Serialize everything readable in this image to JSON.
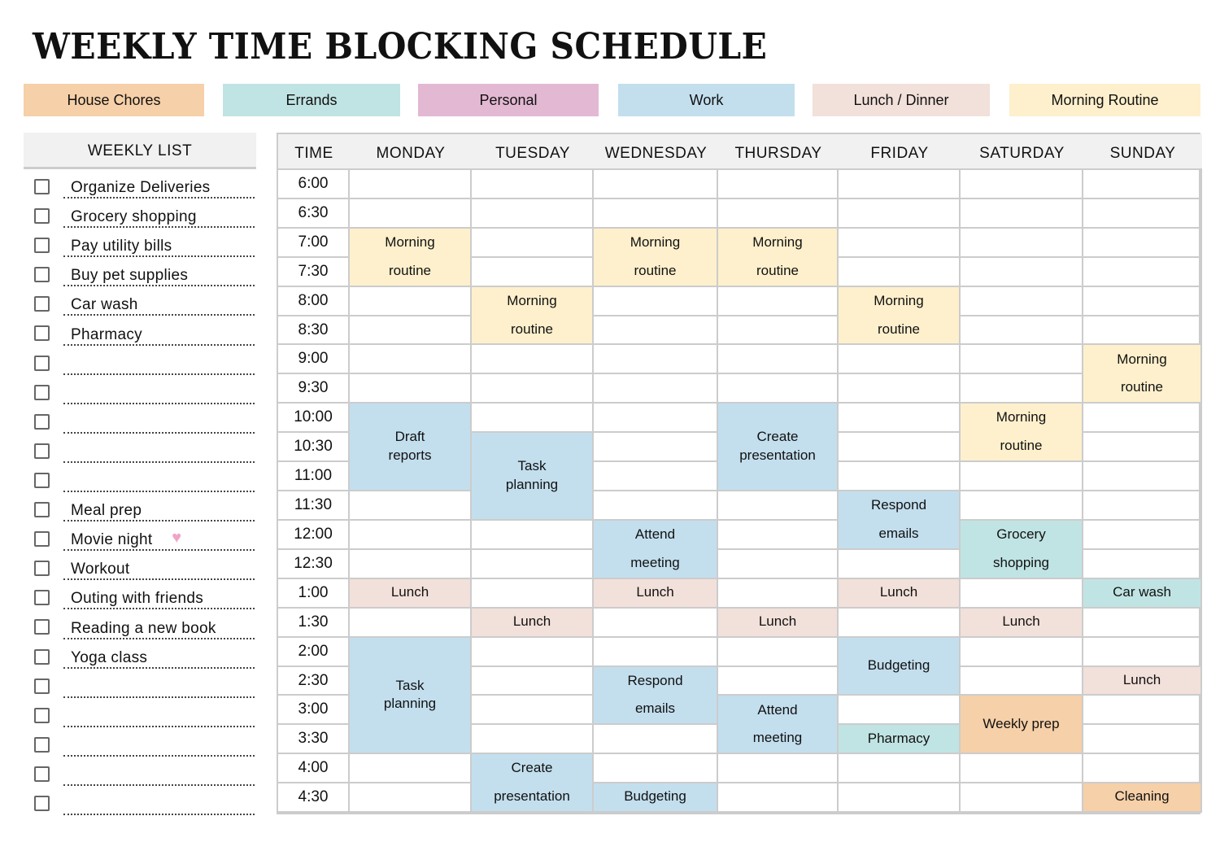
{
  "title": "WEEKLY TIME BLOCKING SCHEDULE",
  "categories": [
    {
      "key": "house",
      "label": "House Chores",
      "color": "#f6d0a8"
    },
    {
      "key": "errands",
      "label": "Errands",
      "color": "#c0e4e3"
    },
    {
      "key": "personal",
      "label": "Personal",
      "color": "#e3b8d3"
    },
    {
      "key": "work",
      "label": "Work",
      "color": "#c3dfee"
    },
    {
      "key": "lunch",
      "label": "Lunch / Dinner",
      "color": "#f2e0da"
    },
    {
      "key": "morning",
      "label": "Morning Routine",
      "color": "#fef0cc"
    }
  ],
  "weekly_list": {
    "title": "WEEKLY LIST",
    "items": [
      "Organize Deliveries",
      "Grocery shopping",
      "Pay utility bills",
      "Buy pet supplies",
      "Car wash",
      "Pharmacy",
      "",
      "",
      "",
      "",
      "",
      "Meal prep",
      "Movie night",
      "Workout",
      "Outing with friends",
      "Reading a new book",
      "Yoga class",
      "",
      "",
      "",
      "",
      ""
    ],
    "heart_icon_item": "Movie night"
  },
  "schedule": {
    "time_header": "TIME",
    "days": [
      "MONDAY",
      "TUESDAY",
      "WEDNESDAY",
      "THURSDAY",
      "FRIDAY",
      "SATURDAY",
      "SUNDAY"
    ],
    "times": [
      "6:00",
      "6:30",
      "7:00",
      "7:30",
      "8:00",
      "8:30",
      "9:00",
      "9:30",
      "10:00",
      "10:30",
      "11:00",
      "11:30",
      "12:00",
      "12:30",
      "1:00",
      "1:30",
      "2:00",
      "2:30",
      "3:00",
      "3:30"
    ],
    "times_tail": [
      "4:00",
      "4:30"
    ],
    "events": [
      {
        "day": "MONDAY",
        "start": "7:00",
        "end": "8:00",
        "label": "Morning\nroutine",
        "category": "morning"
      },
      {
        "day": "MONDAY",
        "start": "10:00",
        "end": "11:30",
        "label": "Draft\nreports",
        "category": "work"
      },
      {
        "day": "MONDAY",
        "start": "1:00",
        "end": "1:30",
        "label": "Lunch",
        "category": "lunch"
      },
      {
        "day": "MONDAY",
        "start": "2:00",
        "end": "4:00",
        "label": "Task\nplanning",
        "category": "work"
      },
      {
        "day": "TUESDAY",
        "start": "8:00",
        "end": "9:00",
        "label": "Morning\nroutine",
        "category": "morning"
      },
      {
        "day": "TUESDAY",
        "start": "10:30",
        "end": "12:00",
        "label": "Task\nplanning",
        "category": "work"
      },
      {
        "day": "TUESDAY",
        "start": "1:30",
        "end": "2:00",
        "label": "Lunch",
        "category": "lunch"
      },
      {
        "day": "TUESDAY",
        "start": "4:00",
        "end": "5:00",
        "label": "Create\npresentation",
        "category": "work"
      },
      {
        "day": "WEDNESDAY",
        "start": "7:00",
        "end": "8:00",
        "label": "Morning\nroutine",
        "category": "morning"
      },
      {
        "day": "WEDNESDAY",
        "start": "12:00",
        "end": "1:00",
        "label": "Attend\nmeeting",
        "category": "work"
      },
      {
        "day": "WEDNESDAY",
        "start": "1:00",
        "end": "1:30",
        "label": "Lunch",
        "category": "lunch"
      },
      {
        "day": "WEDNESDAY",
        "start": "2:30",
        "end": "3:30",
        "label": "Respond\nemails",
        "category": "work"
      },
      {
        "day": "WEDNESDAY",
        "start": "4:30",
        "end": "5:00",
        "label": "Budgeting",
        "category": "work"
      },
      {
        "day": "THURSDAY",
        "start": "7:00",
        "end": "8:00",
        "label": "Morning\nroutine",
        "category": "morning"
      },
      {
        "day": "THURSDAY",
        "start": "10:00",
        "end": "11:30",
        "label": "Create\npresentation",
        "category": "work"
      },
      {
        "day": "THURSDAY",
        "start": "1:30",
        "end": "2:00",
        "label": "Lunch",
        "category": "lunch"
      },
      {
        "day": "THURSDAY",
        "start": "3:00",
        "end": "4:00",
        "label": "Attend\nmeeting",
        "category": "work"
      },
      {
        "day": "FRIDAY",
        "start": "8:00",
        "end": "9:00",
        "label": "Morning\nroutine",
        "category": "morning"
      },
      {
        "day": "FRIDAY",
        "start": "11:30",
        "end": "12:30",
        "label": "Respond\nemails",
        "category": "work"
      },
      {
        "day": "FRIDAY",
        "start": "1:00",
        "end": "1:30",
        "label": "Lunch",
        "category": "lunch"
      },
      {
        "day": "FRIDAY",
        "start": "2:00",
        "end": "3:00",
        "label": "Budgeting",
        "category": "work"
      },
      {
        "day": "FRIDAY",
        "start": "3:30",
        "end": "4:00",
        "label": "Pharmacy",
        "category": "errands"
      },
      {
        "day": "SATURDAY",
        "start": "10:00",
        "end": "11:00",
        "label": "Morning\nroutine",
        "category": "morning"
      },
      {
        "day": "SATURDAY",
        "start": "12:00",
        "end": "1:00",
        "label": "Grocery\nshopping",
        "category": "errands"
      },
      {
        "day": "SATURDAY",
        "start": "1:30",
        "end": "2:00",
        "label": "Lunch",
        "category": "lunch"
      },
      {
        "day": "SATURDAY",
        "start": "3:00",
        "end": "4:00",
        "label": "Weekly prep",
        "category": "house"
      },
      {
        "day": "SUNDAY",
        "start": "9:00",
        "end": "10:00",
        "label": "Morning\nroutine",
        "category": "morning"
      },
      {
        "day": "SUNDAY",
        "start": "1:00",
        "end": "1:30",
        "label": "Car wash",
        "category": "errands"
      },
      {
        "day": "SUNDAY",
        "start": "2:30",
        "end": "3:00",
        "label": "Lunch",
        "category": "lunch"
      },
      {
        "day": "SUNDAY",
        "start": "4:30",
        "end": "5:00",
        "label": "Cleaning",
        "category": "house"
      }
    ]
  }
}
